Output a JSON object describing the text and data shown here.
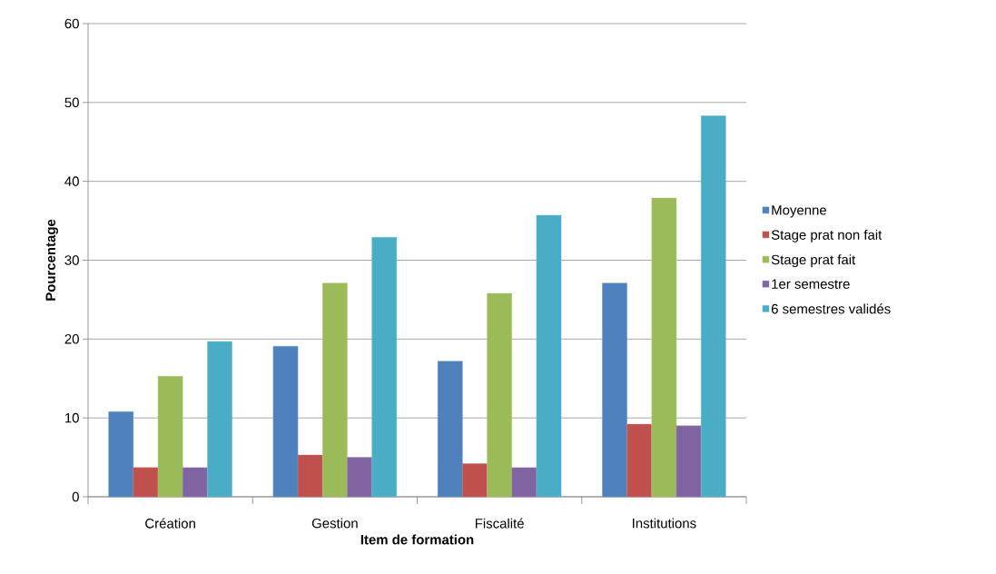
{
  "chart_data": {
    "type": "bar",
    "xlabel": "Item de formation",
    "ylabel": "Pourcentage",
    "categories": [
      "Création",
      "Gestion",
      "Fiscalité",
      "Institutions"
    ],
    "series": [
      {
        "name": "Moyenne",
        "color": "#4f81bd",
        "values": [
          10.8,
          19.1,
          17.2,
          27.1
        ]
      },
      {
        "name": "Stage prat non fait",
        "color": "#c0504d",
        "values": [
          3.7,
          5.3,
          4.2,
          9.2
        ]
      },
      {
        "name": "Stage prat fait",
        "color": "#9bbb59",
        "values": [
          15.3,
          27.1,
          25.8,
          37.9
        ]
      },
      {
        "name": "1er semestre",
        "color": "#8064a2",
        "values": [
          3.7,
          5.0,
          3.7,
          9.0
        ]
      },
      {
        "name": "6 semestres validés",
        "color": "#4bacc6",
        "values": [
          19.7,
          32.9,
          35.7,
          48.3
        ]
      }
    ],
    "ylim": [
      0,
      60
    ],
    "yticks": [
      0,
      10,
      20,
      30,
      40,
      50,
      60
    ],
    "grid": "y",
    "legend": "right"
  }
}
